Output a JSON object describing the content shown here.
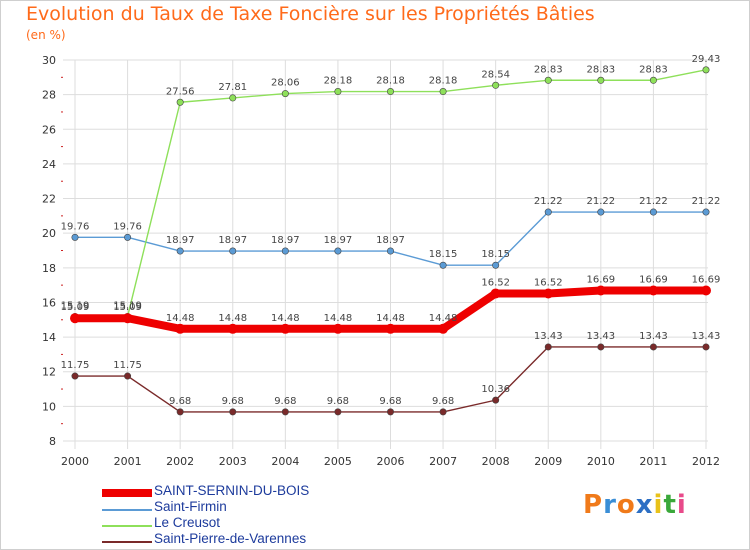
{
  "chart_data": {
    "type": "line",
    "title": "Evolution du Taux de Taxe Foncière sur les Propriétés Bâties",
    "subtitle": "(en %)",
    "xlabel": "",
    "ylabel": "(en %)",
    "ylim": [
      8,
      30
    ],
    "yticks": [
      8,
      10,
      12,
      14,
      16,
      18,
      20,
      22,
      24,
      26,
      28,
      30
    ],
    "categories": [
      "2000",
      "2001",
      "2002",
      "2003",
      "2004",
      "2005",
      "2006",
      "2007",
      "2008",
      "2009",
      "2010",
      "2011",
      "2012"
    ],
    "grid": true,
    "legend_position": "bottom-left",
    "series": [
      {
        "name": "SAINT-SERNIN-DU-BOIS",
        "color": "#ee0000",
        "thick": true,
        "values": [
          15.09,
          15.09,
          14.48,
          14.48,
          14.48,
          14.48,
          14.48,
          14.48,
          16.52,
          16.52,
          16.69,
          16.69,
          16.69
        ],
        "labels": [
          "15.09",
          "15.09",
          "14.48",
          "14.48",
          "14.48",
          "14.48",
          "14.48",
          "14.48",
          "16.52",
          "16.52",
          "16.69",
          "16.69",
          "16.69"
        ]
      },
      {
        "name": "Saint-Firmin",
        "color": "#5b9bd5",
        "thick": false,
        "values": [
          19.76,
          19.76,
          18.97,
          18.97,
          18.97,
          18.97,
          18.97,
          18.15,
          18.15,
          21.22,
          21.22,
          21.22,
          21.22
        ],
        "labels": [
          "19.76",
          "19.76",
          "18.97",
          "18.97",
          "18.97",
          "18.97",
          "18.97",
          "18.15",
          "18.15",
          "21.22",
          "21.22",
          "21.22",
          "21.22"
        ]
      },
      {
        "name": "Le Creusot",
        "color": "#8ee05a",
        "thick": false,
        "values": [
          15.19,
          15.19,
          27.56,
          27.81,
          28.06,
          28.18,
          28.18,
          28.18,
          28.54,
          28.83,
          28.83,
          28.83,
          29.43
        ],
        "labels": [
          "15.19",
          "15.19",
          "27.56",
          "27.81",
          "28.06",
          "28.18",
          "28.18",
          "28.18",
          "28.54",
          "28.83",
          "28.83",
          "28.83",
          "29.43"
        ]
      },
      {
        "name": "Saint-Pierre-de-Varennes",
        "color": "#7a2a2a",
        "thick": false,
        "values": [
          11.75,
          11.75,
          9.68,
          9.68,
          9.68,
          9.68,
          9.68,
          9.68,
          10.36,
          13.43,
          13.43,
          13.43,
          13.43
        ],
        "labels": [
          "11.75",
          "11.75",
          "9.68",
          "9.68",
          "9.68",
          "9.68",
          "9.68",
          "9.68",
          "10.36",
          "13.43",
          "13.43",
          "13.43",
          "13.43"
        ]
      }
    ]
  },
  "brand": {
    "letters": [
      "P",
      "r",
      "o",
      "x",
      "i",
      "t",
      "i"
    ],
    "colors": [
      "#f07a1a",
      "#3a8ed6",
      "#f07a1a",
      "#2c6fc4",
      "#e8c21a",
      "#3aa83a",
      "#e84a8a"
    ]
  }
}
